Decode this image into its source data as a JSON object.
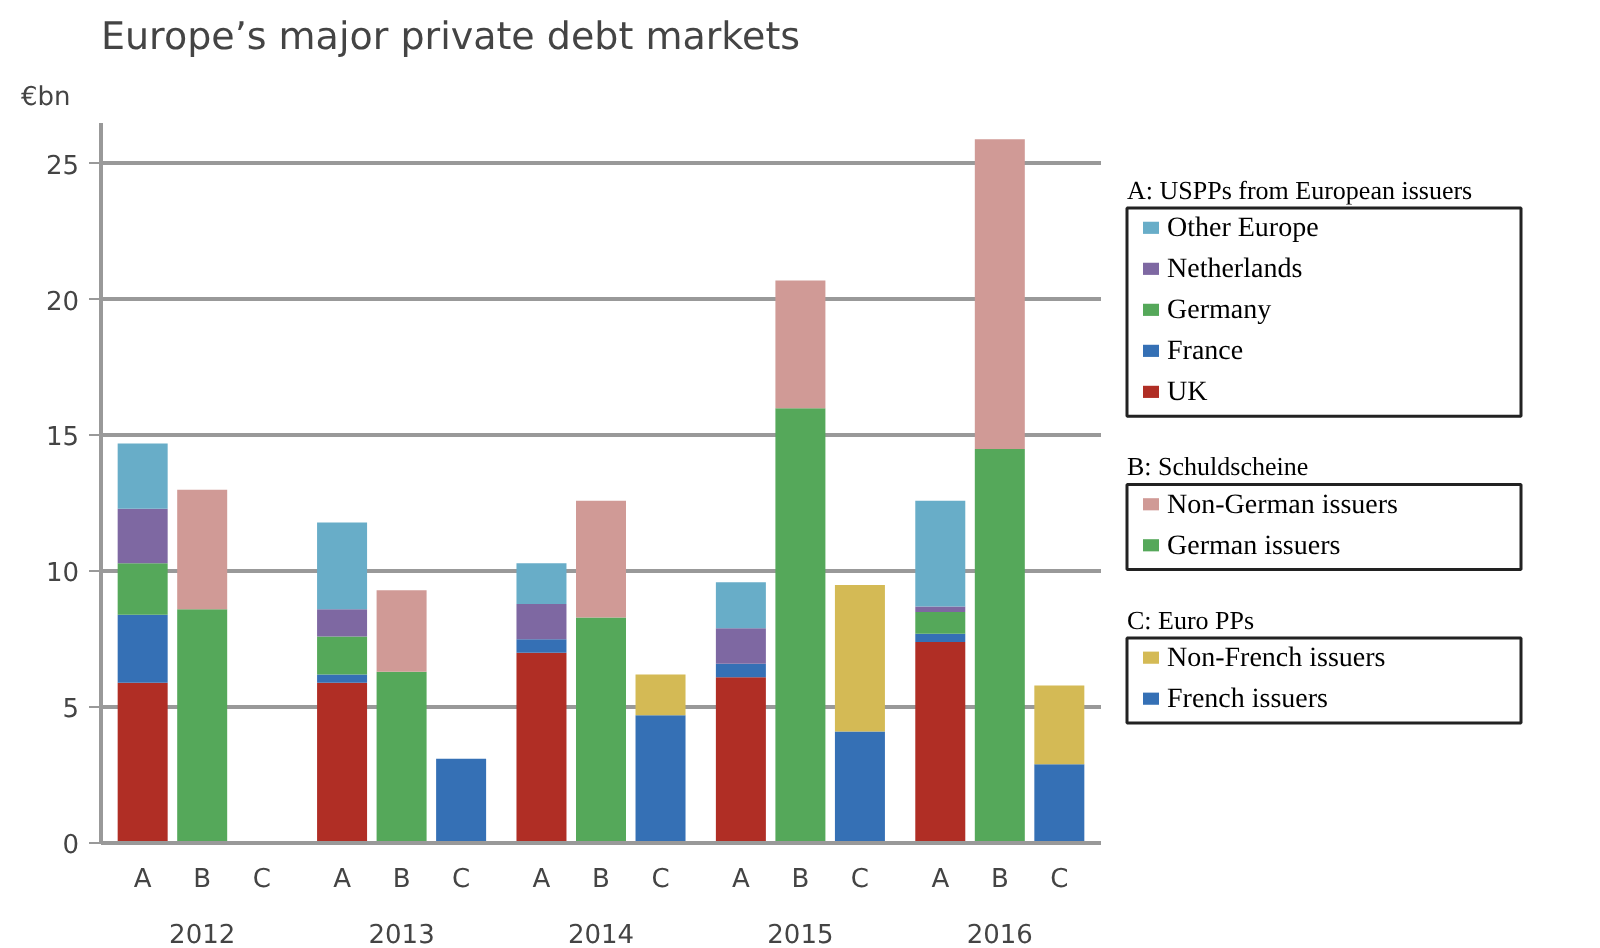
{
  "chart_data": {
    "type": "bar",
    "title": "Europe’s major private debt markets",
    "ylabel": "€bn",
    "categories": [
      "A",
      "B",
      "C",
      "A",
      "B",
      "C",
      "A",
      "B",
      "C",
      "A",
      "B",
      "C",
      "A",
      "B",
      "C"
    ],
    "stacked": true,
    "ylim": [
      0,
      26.5
    ],
    "yticks": [
      0,
      5,
      10,
      15,
      20,
      25
    ],
    "grid": "y",
    "legend": "right",
    "annotations": [
      "A: USPPs from European issuers",
      "B: Schuldscheine",
      "C: Euro PPs",
      "2012",
      "2013",
      "2014",
      "2015",
      "2016"
    ],
    "series": [
      {
        "name": "UK",
        "color": "#b02e25",
        "values": [
          5.9,
          null,
          null,
          5.9,
          null,
          null,
          7.0,
          null,
          null,
          6.1,
          null,
          null,
          7.4,
          null,
          null
        ]
      },
      {
        "name": "France",
        "color": "#3570b5",
        "values": [
          2.5,
          null,
          null,
          0.3,
          null,
          null,
          0.5,
          null,
          null,
          0.5,
          null,
          null,
          0.3,
          null,
          null
        ]
      },
      {
        "name": "Germany",
        "color": "#55a85a",
        "values": [
          1.9,
          null,
          null,
          1.4,
          null,
          null,
          null,
          null,
          null,
          null,
          null,
          null,
          0.8,
          null,
          null
        ]
      },
      {
        "name": "Netherlands",
        "color": "#7e68a2",
        "values": [
          2.0,
          null,
          null,
          1.0,
          null,
          null,
          1.3,
          null,
          null,
          1.3,
          null,
          null,
          0.2,
          null,
          null
        ]
      },
      {
        "name": "Other Europe",
        "color": "#68adc8",
        "values": [
          2.4,
          null,
          null,
          3.2,
          null,
          null,
          1.5,
          null,
          null,
          1.7,
          null,
          null,
          3.9,
          null,
          null
        ]
      },
      {
        "name": "German issuers",
        "color": "#55a85a",
        "values": [
          null,
          8.6,
          null,
          null,
          6.3,
          null,
          null,
          8.3,
          null,
          null,
          16.0,
          null,
          null,
          14.5,
          null
        ]
      },
      {
        "name": "Non-German issuers",
        "color": "#d09a96",
        "values": [
          null,
          4.4,
          null,
          null,
          3.0,
          null,
          null,
          4.3,
          null,
          null,
          4.7,
          null,
          null,
          11.4,
          null
        ]
      },
      {
        "name": "French issuers",
        "color": "#3570b5",
        "values": [
          null,
          null,
          null,
          null,
          null,
          3.1,
          null,
          null,
          4.7,
          null,
          null,
          4.1,
          null,
          null,
          2.9
        ]
      },
      {
        "name": "Non-French issuers",
        "color": "#d4ba55",
        "values": [
          null,
          null,
          null,
          null,
          null,
          null,
          null,
          null,
          1.5,
          null,
          null,
          5.4,
          null,
          null,
          2.9
        ]
      }
    ]
  }
}
